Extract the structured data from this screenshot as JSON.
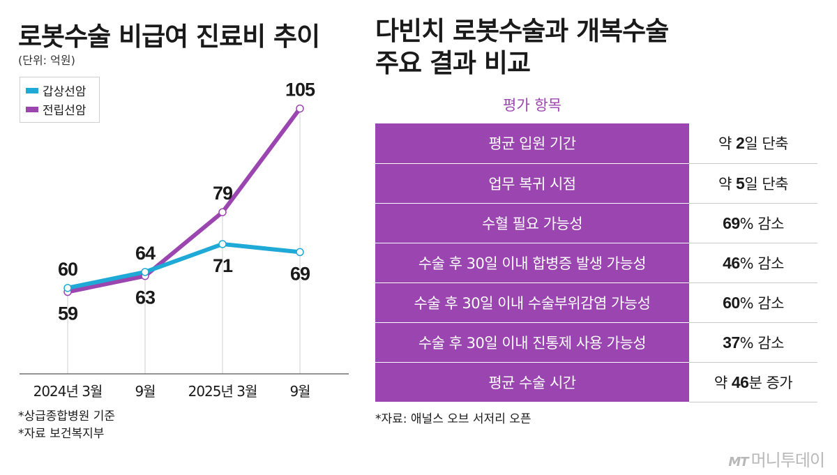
{
  "left_title": "로봇수술 비급여 진료비 추이",
  "left_unit": "(단위: 억원)",
  "left_notes": [
    "*상급종합병원 기준",
    "*자료 보건복지부"
  ],
  "colors": {
    "gapsang": "#1ea9d6",
    "jeonrip": "#9b46b0",
    "table_purple": "#9b46b0"
  },
  "chart_data": {
    "type": "line",
    "title": "로봇수술 비급여 진료비 추이",
    "unit": "(단위: 억원)",
    "categories": [
      "2024년 3월",
      "9월",
      "2025년 3월",
      "9월"
    ],
    "series": [
      {
        "name": "갑상선암",
        "values": [
          60,
          64,
          71,
          69
        ]
      },
      {
        "name": "전립선암",
        "values": [
          59,
          63,
          79,
          105
        ]
      }
    ],
    "ylim": [
      50,
      110
    ],
    "legend": "top-left",
    "grid": false
  },
  "right_title": [
    "다빈치 로봇수술과 개복수술",
    "주요 결과 비교"
  ],
  "table_header": "평가 항목",
  "table_rows": [
    {
      "item": "평균 입원 기간",
      "pre": "약 ",
      "num": "2",
      "post": "일 단축"
    },
    {
      "item": "업무 복귀 시점",
      "pre": "약 ",
      "num": "5",
      "post": "일 단축"
    },
    {
      "item": "수혈 필요 가능성",
      "pre": "",
      "num": "69",
      "post": "% 감소"
    },
    {
      "item": "수술 후 30일 이내 합병증 발생 가능성",
      "pre": "",
      "num": "46",
      "post": "% 감소"
    },
    {
      "item": "수술 후 30일 이내 수술부위감염 가능성",
      "pre": "",
      "num": "60",
      "post": "% 감소"
    },
    {
      "item": "수술 후 30일 이내 진통제 사용 가능성",
      "pre": "",
      "num": "37",
      "post": "% 감소"
    },
    {
      "item": "평균 수술 시간",
      "pre": "약 ",
      "num": "46",
      "post": "분 증가"
    }
  ],
  "right_note": "*자료: 애널스 오브 서저리 오픈",
  "logo": {
    "mark": "MT",
    "text": "머니투데이"
  }
}
